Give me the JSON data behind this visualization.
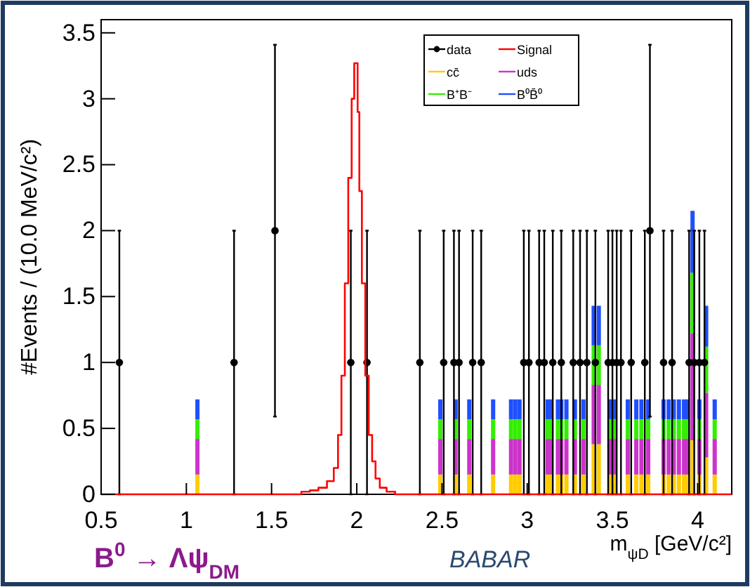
{
  "chart_data": {
    "type": "bar",
    "stacked": true,
    "ylabel": "#Events / (10.0 MeV/c²)",
    "xlabel": "m$_{ψD}$ [GeV/c²]",
    "annotations": [
      "B$^{0}$ → Λψ$_{DM}$",
      "BABAR"
    ],
    "xlim": [
      0.5,
      4.2
    ],
    "xticks": [
      0.5,
      1,
      1.5,
      2,
      2.5,
      3,
      3.5,
      4
    ],
    "ylim": [
      0,
      3.6
    ],
    "yticks": [
      0,
      0.5,
      1,
      1.5,
      2,
      2.5,
      3,
      3.5
    ],
    "legend": "top right",
    "x": [
      1.065,
      2.49,
      2.58,
      2.66,
      2.8,
      2.905,
      2.93,
      2.955,
      3.12,
      3.14,
      3.18,
      3.2,
      3.23,
      3.28,
      3.33,
      3.39,
      3.42,
      3.49,
      3.51,
      3.59,
      3.64,
      3.67,
      3.71,
      3.8,
      3.83,
      3.86,
      3.89,
      3.92,
      3.94,
      3.97,
      4.01,
      4.05,
      4.1
    ],
    "series": [
      {
        "name": "data",
        "type": "scatter",
        "marker": "circle",
        "color": "#000000",
        "x": [
          0.607,
          1.28,
          1.52,
          1.965,
          2.06,
          2.37,
          2.51,
          2.57,
          2.6,
          2.68,
          2.73,
          2.98,
          3.01,
          3.07,
          3.1,
          3.15,
          3.2,
          3.27,
          3.31,
          3.35,
          3.4,
          3.475,
          3.5,
          3.525,
          3.55,
          3.61,
          3.69,
          3.72,
          3.8,
          3.85,
          3.95,
          3.98,
          4.01,
          4.04
        ],
        "values": [
          1,
          1,
          2,
          1,
          1,
          1,
          1,
          1,
          1,
          1,
          1,
          1,
          1,
          1,
          1,
          1,
          1,
          1,
          1,
          1,
          1,
          1,
          1,
          1,
          1,
          1,
          1,
          2,
          1,
          1,
          1,
          1,
          1,
          1
        ],
        "errors": [
          [
            0,
            2
          ],
          [
            0,
            2
          ],
          [
            0.59,
            3.41
          ],
          [
            0,
            2
          ],
          [
            0,
            2
          ],
          [
            0,
            2
          ],
          [
            0,
            2
          ],
          [
            0,
            2
          ],
          [
            0,
            2
          ],
          [
            0,
            2
          ],
          [
            0,
            2
          ],
          [
            0,
            2
          ],
          [
            0,
            2
          ],
          [
            0,
            2
          ],
          [
            0,
            2
          ],
          [
            0,
            2
          ],
          [
            0,
            2
          ],
          [
            0,
            2
          ],
          [
            0,
            2
          ],
          [
            0,
            2
          ],
          [
            0,
            2
          ],
          [
            0,
            2
          ],
          [
            0,
            2
          ],
          [
            0,
            2
          ],
          [
            0,
            2
          ],
          [
            0,
            2
          ],
          [
            0,
            2
          ],
          [
            0.59,
            3.41
          ],
          [
            0,
            2
          ],
          [
            0,
            2
          ],
          [
            0,
            2
          ],
          [
            0,
            2
          ],
          [
            0,
            2
          ],
          [
            0,
            2
          ]
        ]
      },
      {
        "name": "Signal",
        "type": "step",
        "color": "#ff0000",
        "x": [
          0.5,
          1.65,
          1.7,
          1.75,
          1.8,
          1.85,
          1.88,
          1.9,
          1.92,
          1.94,
          1.96,
          1.98,
          1.99,
          2.0,
          2.01,
          2.02,
          2.04,
          2.06,
          2.08,
          2.1,
          2.12,
          2.15,
          2.2,
          2.25,
          4.2
        ],
        "values": [
          0,
          0,
          0.02,
          0.03,
          0.05,
          0.1,
          0.2,
          0.45,
          0.9,
          1.6,
          2.4,
          3.0,
          3.27,
          3.27,
          2.9,
          2.3,
          1.6,
          0.9,
          0.45,
          0.25,
          0.12,
          0.05,
          0.02,
          0,
          0
        ]
      },
      {
        "name": "cc̄",
        "type": "bar",
        "color": "#ffcc00",
        "values": [
          0.15,
          0.15,
          0.15,
          0.15,
          0.15,
          0.15,
          0.15,
          0.15,
          0.15,
          0.15,
          0.15,
          0.15,
          0.15,
          0.15,
          0.15,
          0.38,
          0.38,
          0.15,
          0.15,
          0.15,
          0.15,
          0.15,
          0.15,
          0.15,
          0.15,
          0.15,
          0.15,
          0.15,
          0.15,
          0.41,
          0.15,
          0.28,
          0.15
        ]
      },
      {
        "name": "uds",
        "type": "bar",
        "color": "#cc33cc",
        "values": [
          0.27,
          0.27,
          0.27,
          0.27,
          0.27,
          0.27,
          0.27,
          0.27,
          0.27,
          0.27,
          0.27,
          0.27,
          0.27,
          0.27,
          0.27,
          0.45,
          0.45,
          0.27,
          0.27,
          0.27,
          0.27,
          0.27,
          0.27,
          0.27,
          0.27,
          0.27,
          0.27,
          0.27,
          0.27,
          0.81,
          0.27,
          0.49,
          0.27
        ]
      },
      {
        "name": "B⁺B⁻",
        "type": "bar",
        "color": "#33ee00",
        "values": [
          0.15,
          0.15,
          0.15,
          0.15,
          0.15,
          0.15,
          0.15,
          0.15,
          0.15,
          0.15,
          0.15,
          0.15,
          0.15,
          0.15,
          0.15,
          0.3,
          0.3,
          0.15,
          0.15,
          0.15,
          0.15,
          0.15,
          0.15,
          0.15,
          0.15,
          0.15,
          0.15,
          0.15,
          0.15,
          0.46,
          0.15,
          0.35,
          0.15
        ]
      },
      {
        "name": "B⁰B̄⁰",
        "type": "bar",
        "color": "#1f4fff",
        "values": [
          0.15,
          0.15,
          0.15,
          0.15,
          0.15,
          0.15,
          0.15,
          0.15,
          0.15,
          0.15,
          0.15,
          0.15,
          0.15,
          0.15,
          0.15,
          0.3,
          0.3,
          0.15,
          0.15,
          0.15,
          0.15,
          0.15,
          0.15,
          0.15,
          0.15,
          0.15,
          0.15,
          0.15,
          0.15,
          0.47,
          0.15,
          0.31,
          0.15
        ]
      }
    ]
  }
}
